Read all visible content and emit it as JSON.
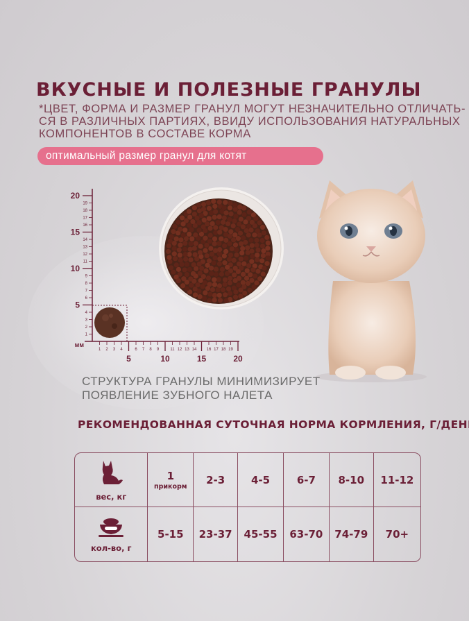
{
  "title": "ВКУСНЫЕ И ПОЛЕЗНЫЕ ГРАНУЛЫ",
  "note_lines": [
    "*ЦВЕТ, ФОРМА И РАЗМЕР ГРАНУЛ МОГУТ НЕЗНАЧИТЕЛЬНО ОТЛИЧАТЬ-",
    "СЯ В РАЗЛИЧНЫХ ПАРТИЯХ, ВВИДУ ИСПОЛЬЗОВАНИЯ НАТУРАЛЬНЫХ",
    "КОМПОНЕНТОВ В СОСТАВЕ КОРМА"
  ],
  "badge": "оптимальный размер гранул для котят",
  "ruler": {
    "unit": "мм",
    "y_major": [
      "20",
      "15",
      "10",
      "5"
    ],
    "y_minor": [
      "19",
      "18",
      "17",
      "16",
      "14",
      "13",
      "12",
      "11",
      "9",
      "8",
      "7",
      "6",
      "4",
      "3",
      "2",
      "1"
    ],
    "x_major": [
      "5",
      "10",
      "15",
      "20"
    ],
    "x_minor": [
      "1",
      "2",
      "3",
      "4",
      "6",
      "7",
      "8",
      "9",
      "11",
      "12",
      "13",
      "14",
      "16",
      "17",
      "18",
      "19"
    ],
    "granule_size_mm": 5
  },
  "caption_lines": [
    "СТРУКТУРА ГРАНУЛЫ МИНИМИЗИРУЕТ",
    "ПОЯВЛЕНИЕ ЗУБНОГО НАЛЕТА"
  ],
  "feeding": {
    "title": "РЕКОМЕНДОВАННАЯ СУТОЧНАЯ НОРМА КОРМЛЕНИЯ, Г/ДЕНЬ",
    "weight_label": "вес, кг",
    "amount_label": "кол-во, г",
    "first_weight": "1",
    "first_weight_note": "прикорм",
    "weights": [
      "2-3",
      "4-5",
      "6-7",
      "8-10",
      "11-12"
    ],
    "amounts": [
      "5-15",
      "23-37",
      "45-55",
      "63-70",
      "74-79",
      "70+"
    ]
  },
  "colors": {
    "accent": "#6b1f36",
    "badge": "#e6708d",
    "kibble": "#5a3224"
  },
  "icons": [
    "cat-icon",
    "food-bowl-icon"
  ]
}
